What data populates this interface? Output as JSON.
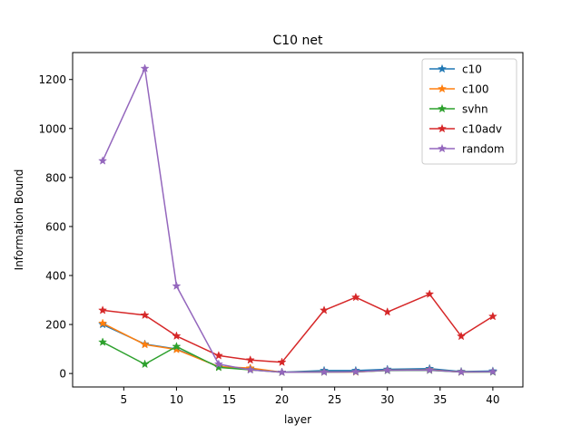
{
  "chart_data": {
    "type": "line",
    "title": "C10 net",
    "xlabel": "layer",
    "ylabel": "Information Bound",
    "xlim": [
      0.15,
      42.85
    ],
    "ylim": [
      -55,
      1310
    ],
    "x_ticks": [
      5,
      10,
      15,
      20,
      25,
      30,
      35,
      40
    ],
    "y_ticks": [
      0,
      200,
      400,
      600,
      800,
      1000,
      1200
    ],
    "grid": false,
    "legend_position": "top-right",
    "marker": "star",
    "x": [
      3,
      7,
      10,
      14,
      17,
      20,
      24,
      27,
      30,
      34,
      37,
      40
    ],
    "series": [
      {
        "name": "c10",
        "color": "#1f77b4",
        "values": [
          200,
          120,
          100,
          28,
          20,
          5,
          12,
          12,
          17,
          20,
          8,
          10
        ]
      },
      {
        "name": "c100",
        "color": "#ff7f0e",
        "values": [
          205,
          118,
          98,
          28,
          22,
          5,
          6,
          6,
          13,
          15,
          6,
          7
        ]
      },
      {
        "name": "svhn",
        "color": "#2ca02c",
        "values": [
          128,
          38,
          110,
          25,
          15,
          5,
          6,
          7,
          12,
          13,
          6,
          6
        ]
      },
      {
        "name": "c10adv",
        "color": "#d62728",
        "values": [
          258,
          238,
          153,
          73,
          55,
          46,
          258,
          311,
          251,
          324,
          152,
          233
        ]
      },
      {
        "name": "random",
        "color": "#9467bd",
        "values": [
          868,
          1245,
          357,
          38,
          15,
          5,
          6,
          7,
          13,
          14,
          6,
          7
        ]
      }
    ]
  }
}
